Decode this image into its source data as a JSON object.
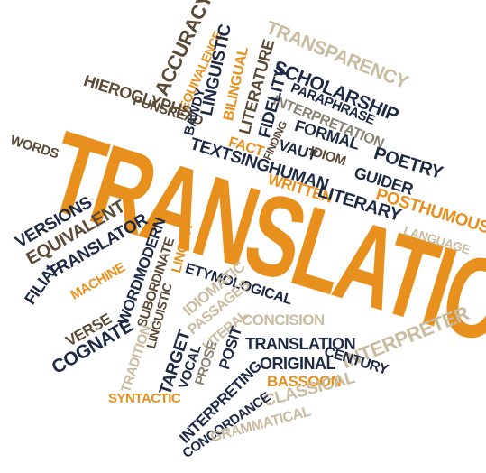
{
  "colors": {
    "orange": "#e8901d",
    "navy": "#1f2a44",
    "brown": "#5b4a36",
    "tan": "#c9bc9f",
    "grey": "#8a8475"
  },
  "words": {
    "main": "TRANSLATION",
    "transparency": "TRANSPARENCY",
    "scholarship": "SCHOLARSHIP",
    "paraphrase": "PARAPHRASE",
    "interpretation": "INTERPRETATION",
    "accuracy": "ACCURACY",
    "equivalence": "EQUIVALENCE",
    "linguistic": "LINGUISTIC",
    "bilingual": "BILINGUAL",
    "literature": "LITERATURE",
    "fidelity": "FIDELITY",
    "hieroglyphs": "HIEROGLYPHS",
    "punsread": "PUNSREAD",
    "bawdy": "BAWDY",
    "words": "WORDS",
    "fact": "FACT",
    "finding": "FINDING",
    "formal": "FORMAL",
    "textsinghuman": "TEXTSINGHUMAN",
    "vaut": "VAUT",
    "idiom": "IDIOM",
    "poetry": "POETRY",
    "guider": "GUIDER",
    "written": "WRITTEN",
    "literary": "LITERARY",
    "posthumous": "POSTHUMOUS",
    "language": "LANGUAGE",
    "versions": "VERSIONS",
    "equivalent": "EQUIVALENT",
    "translator": "TRANSLATOR",
    "machine": "MACHINE",
    "filial": "FILIAL",
    "wordmodern": "WORDMODERN",
    "subordinate": "SUBORDINATE",
    "linguistic_small": "LINGUISTIC",
    "lingua": "LINGUA",
    "etymological": "ETYMOLOGICAL",
    "idiomatic": "IDIOMATIC",
    "passages": "PASSAGES",
    "literal": "LITERAL",
    "concision": "CONCISION",
    "interpreter": "INTERPRETER",
    "verse": "VERSE",
    "cognate": "COGNATE",
    "tradition": "TRADITION",
    "target": "TARGET",
    "vocal": "VOCAL",
    "prose": "PROSE",
    "posit": "POSIT",
    "translation_small": "TRANSLATION",
    "original": "ORIGINAL",
    "century": "CENTURY",
    "bassoon": "BASSOON",
    "classical": "CLASSICAL",
    "syntactic": "SYNTACTIC",
    "interpreting": "INTERPRETING",
    "concordance": "CONCORDANCE",
    "grammatical": "GRAMMATICAL"
  }
}
